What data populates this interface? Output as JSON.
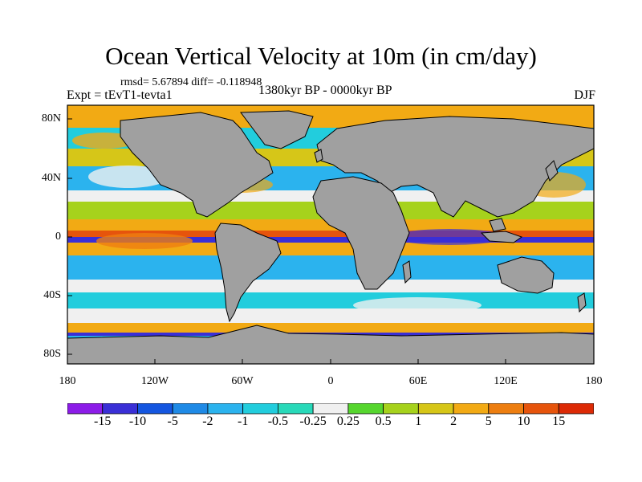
{
  "title": "Ocean Vertical Velocity at 10m (in cm/day)",
  "stats": "rmsd= 5.67894 diff= -0.118948",
  "experiment": "Expt = tEvT1-tevta1",
  "period": "1380kyr BP - 0000kyr BP",
  "season": "DJF",
  "lat_labels": [
    "80N",
    "40N",
    "0",
    "40S",
    "80S"
  ],
  "lon_labels": [
    "180",
    "120W",
    "60W",
    "0",
    "60E",
    "120E",
    "180"
  ],
  "colorbar": {
    "labels": [
      "-15",
      "-10",
      "-5",
      "-2",
      "-1",
      "-0.5",
      "-0.25",
      "0.25",
      "0.5",
      "1",
      "2",
      "5",
      "10",
      "15"
    ],
    "colors": [
      "#8c1ce8",
      "#3a2fd6",
      "#1456e0",
      "#1f8ae6",
      "#2bb3ee",
      "#22cddd",
      "#28d9b9",
      "#f0f0f0",
      "#56d62e",
      "#a6d21c",
      "#d6c618",
      "#f2aa14",
      "#ed7e10",
      "#e6540c",
      "#dc2a06"
    ]
  },
  "land_color": "#a0a0a0"
}
